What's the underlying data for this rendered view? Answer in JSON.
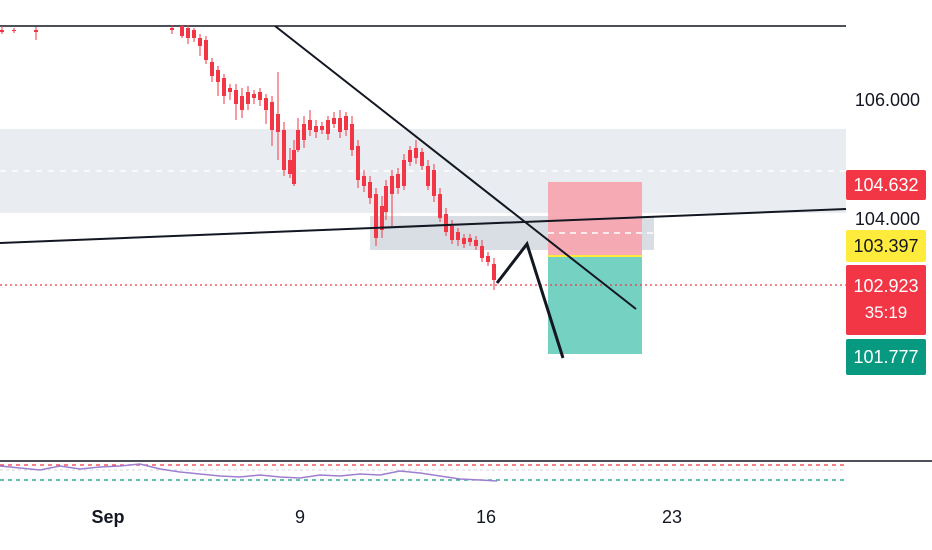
{
  "chart_data": {
    "type": "candlestick",
    "x_ticks": [
      "Sep",
      "9",
      "16",
      "23"
    ],
    "y_ticks": [
      "106.000",
      "104.000"
    ],
    "current_price": "102.923",
    "countdown": "35:19",
    "position": {
      "stop_loss": "104.632",
      "entry": "103.397",
      "take_profit": "101.777"
    },
    "colors": {
      "up": "#2962ff",
      "down": "#f23645",
      "stop_zone": "#f7a3ad",
      "target_zone": "#6ecfbf",
      "stop_badge": "#f23645",
      "entry_badge": "#ffeb3b",
      "price_badge": "#f23645",
      "target_badge": "#089981",
      "zone": "#e2e7ee",
      "grid_dashed": "#d1d4dc"
    }
  }
}
